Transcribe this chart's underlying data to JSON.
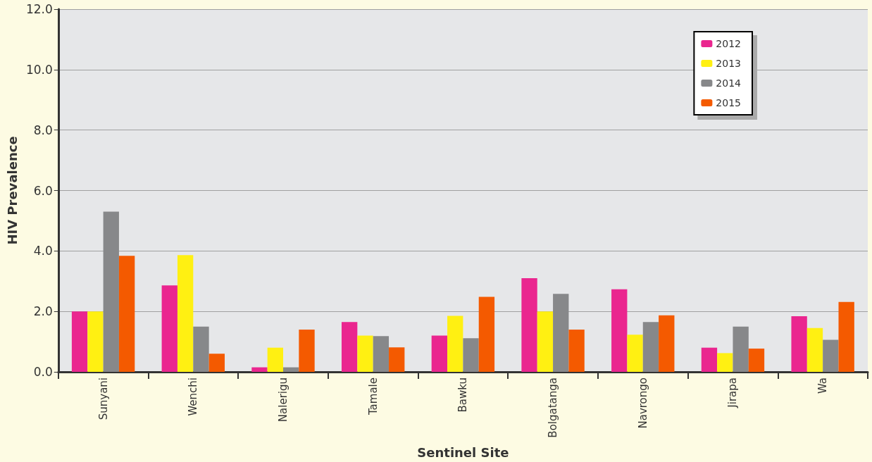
{
  "chart_data": {
    "type": "bar",
    "xlabel": "Sentinel Site",
    "ylabel": "HIV Prevalence",
    "categories": [
      "Sunyani",
      "Wenchi",
      "Nalerigu",
      "Tamale",
      "Bawku",
      "Bolgatanga",
      "Navrongo",
      "Jirapa",
      "Wa"
    ],
    "series": [
      {
        "name": "2012",
        "color": "#ea268f",
        "values": [
          2.0,
          2.86,
          0.15,
          1.65,
          1.2,
          3.1,
          2.73,
          0.8,
          1.84
        ]
      },
      {
        "name": "2013",
        "color": "#fff012",
        "values": [
          2.0,
          3.86,
          0.8,
          1.2,
          1.85,
          2.0,
          1.23,
          0.62,
          1.45
        ]
      },
      {
        "name": "2014",
        "color": "#87888a",
        "values": [
          5.3,
          1.5,
          0.15,
          1.18,
          1.11,
          2.58,
          1.65,
          1.5,
          1.06
        ]
      },
      {
        "name": "2015",
        "color": "#f45a00",
        "values": [
          3.84,
          0.6,
          1.4,
          0.81,
          2.48,
          1.4,
          1.87,
          0.77,
          2.31
        ]
      }
    ],
    "ylim": [
      0,
      12
    ],
    "yticks": [
      {
        "value": 0,
        "label": "0.0"
      },
      {
        "value": 2,
        "label": "2.0"
      },
      {
        "value": 4,
        "label": "4.0"
      },
      {
        "value": 6,
        "label": "6.0"
      },
      {
        "value": 8,
        "label": "8.0"
      },
      {
        "value": 10,
        "label": "10.0"
      },
      {
        "value": 12,
        "label": "12.0"
      }
    ],
    "grid": "y",
    "legend": "top right"
  }
}
